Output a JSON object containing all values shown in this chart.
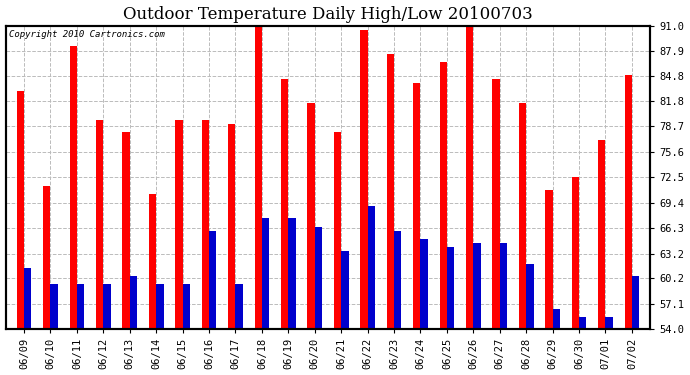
{
  "title": "Outdoor Temperature Daily High/Low 20100703",
  "copyright_text": "Copyright 2010 Cartronics.com",
  "dates": [
    "06/09",
    "06/10",
    "06/11",
    "06/12",
    "06/13",
    "06/14",
    "06/15",
    "06/16",
    "06/17",
    "06/18",
    "06/19",
    "06/20",
    "06/21",
    "06/22",
    "06/23",
    "06/24",
    "06/25",
    "06/26",
    "06/27",
    "06/28",
    "06/29",
    "06/30",
    "07/01",
    "07/02"
  ],
  "highs": [
    83.0,
    71.5,
    88.5,
    79.5,
    78.0,
    70.5,
    79.5,
    79.5,
    79.0,
    91.0,
    84.5,
    81.5,
    78.0,
    90.5,
    87.5,
    84.0,
    86.5,
    91.0,
    84.5,
    81.5,
    71.0,
    72.5,
    77.0,
    85.0
  ],
  "lows": [
    61.5,
    59.5,
    59.5,
    59.5,
    60.5,
    59.5,
    59.5,
    66.0,
    59.5,
    67.5,
    67.5,
    66.5,
    63.5,
    69.0,
    66.0,
    65.0,
    64.0,
    64.5,
    64.5,
    62.0,
    56.5,
    55.5,
    55.5,
    60.5
  ],
  "high_color": "#ff0000",
  "low_color": "#0000cc",
  "bg_color": "#ffffff",
  "plot_bg_color": "#ffffff",
  "ylim_min": 54.0,
  "ylim_max": 91.0,
  "yticks": [
    54.0,
    57.1,
    60.2,
    63.2,
    66.3,
    69.4,
    72.5,
    75.6,
    78.7,
    81.8,
    84.8,
    87.9,
    91.0
  ],
  "grid_color": "#bbbbbb",
  "title_fontsize": 12,
  "tick_fontsize": 7.5,
  "bar_width": 0.28
}
